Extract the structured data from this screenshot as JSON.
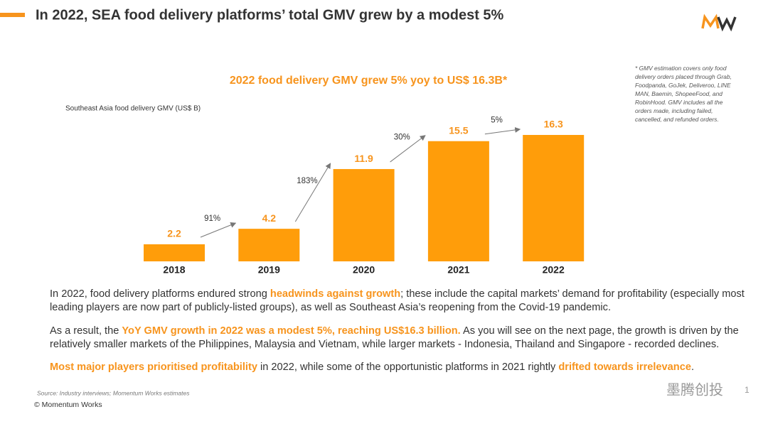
{
  "header": {
    "title": "In 2022, SEA food delivery platforms’ total GMV grew by a modest 5%"
  },
  "chart_data": {
    "type": "bar",
    "title": "2022 food delivery GMV grew 5% yoy to US$ 16.3B*",
    "subtitle": "Southeast Asia food delivery GMV (US$ B)",
    "categories": [
      "2018",
      "2019",
      "2020",
      "2021",
      "2022"
    ],
    "values": [
      2.2,
      4.2,
      11.9,
      15.5,
      16.3
    ],
    "color": "#ff9d0a",
    "growth_labels": [
      "91%",
      "183%",
      "30%",
      "5%"
    ]
  },
  "footnote": "* GMV estimation covers only food delivery orders placed through Grab, Foodpanda, GoJek, Deliveroo, LINE MAN, Baemin, ShopeeFood, and RobinHood.  GMV includes all the orders made, including failed, cancelled, and refunded orders.",
  "paragraphs": [
    [
      "In 2022, food delivery platforms endured strong ",
      "headwinds against growth",
      "; these include the capital markets’ demand for profitability (especially most leading players are now part of publicly-listed groups), as well as Southeast Asia’s reopening from the Covid-19 pandemic."
    ],
    [
      "As a result, the ",
      "YoY GMV growth in 2022 was a modest 5%, reaching US$16.3 billion.",
      " As you will see on the next page, the growth is driven by the relatively smaller markets of the Philippines, Malaysia and Vietnam, while larger markets - Indonesia, Thailand and Singapore - recorded declines."
    ],
    [
      "",
      "Most major players prioritised profitability",
      " in 2022, while some of the opportunistic platforms in 2021 rightly ",
      "drifted towards irrelevance",
      "."
    ]
  ],
  "source": "Source: Industry interviews; Momentum Works estimates",
  "copyright": "© Momentum Works",
  "watermark": "墨腾创投",
  "page_number": "1"
}
